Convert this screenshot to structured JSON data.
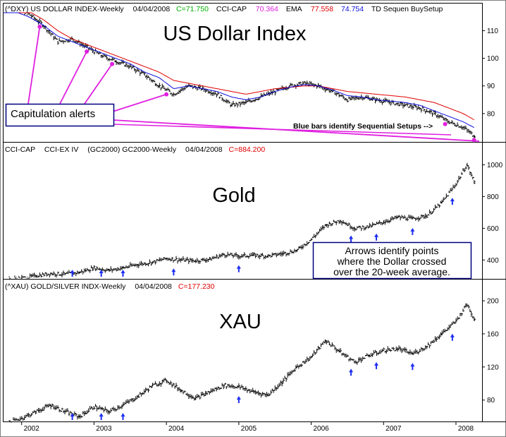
{
  "colors": {
    "price_bars": "#000000",
    "ema": "#e00000",
    "td_line": "#1010e0",
    "alerts": "#e020e0",
    "arrows": "#1e2ef0",
    "value_green": "#00b000",
    "value_magenta": "#e020e0",
    "value_red": "#e00000",
    "value_blue": "#1010e0"
  },
  "panels": {
    "dxy": {
      "header": {
        "symbol": "(^DXY) US DOLLAR INDEX-Weekly",
        "date": "04/04/2008",
        "close": "C=71.750",
        "cci_label": "CCI-CAP",
        "cci_value": "70.364",
        "ema_label": "EMA",
        "ema_value": "77.558",
        "td_value": "74.754",
        "td_label": "TD Sequen BuySetup"
      },
      "title": "US Dollar Index",
      "callout": "Capitulation alerts",
      "setup_note": "Blue bars identify Sequential Setups -->"
    },
    "gold": {
      "header": {
        "cci_label": "CCI-CAP",
        "ccix_label": "CCI-EX IV",
        "symbol": "(GC2000) GC2000-Weekly",
        "date": "04/04/2008",
        "close": "C=884.200"
      },
      "title": "Gold",
      "note_lines": [
        "Arrows identify points",
        "where the Dollar crossed",
        "over the 20-week average."
      ]
    },
    "xau": {
      "header": {
        "symbol": "(^XAU) GOLD/SILVER INDX-Weekly",
        "date": "04/04/2008",
        "close": "C=177.230"
      },
      "title": "XAU"
    }
  },
  "chart_data": [
    {
      "type": "bar",
      "subtype": "ohlc",
      "title": "US Dollar Index",
      "series_name": "(^DXY) US DOLLAR INDEX-Weekly",
      "x_labels": [
        "2002",
        "2003",
        "2004",
        "2005",
        "2006",
        "2007",
        "2008"
      ],
      "y_ticks": [
        80,
        90,
        100,
        110
      ],
      "ylim": [
        70,
        116
      ],
      "xlim": [
        2001.75,
        2008.36
      ],
      "grid": false,
      "x": [
        2001.9,
        2002.1,
        2002.3,
        2002.5,
        2002.7,
        2002.9,
        2003.1,
        2003.3,
        2003.5,
        2003.7,
        2003.9,
        2004.1,
        2004.3,
        2004.5,
        2004.7,
        2004.9,
        2005.1,
        2005.3,
        2005.5,
        2005.7,
        2005.9,
        2006.1,
        2006.3,
        2006.5,
        2006.7,
        2006.9,
        2007.1,
        2007.3,
        2007.5,
        2007.7,
        2007.9,
        2008.1,
        2008.26
      ],
      "values": [
        118,
        116,
        112,
        106,
        107,
        104,
        101,
        99,
        97,
        94,
        90,
        87,
        90,
        89,
        87,
        83,
        84,
        86,
        88,
        90,
        91,
        90,
        88,
        85,
        86,
        85,
        84,
        83,
        82,
        80,
        77,
        75,
        71.75
      ],
      "overlays": [
        {
          "name": "EMA",
          "color": "red",
          "values": [
            119,
            117,
            114,
            110,
            107,
            105,
            103,
            101,
            99,
            97,
            95,
            92,
            91,
            90,
            89,
            88,
            87,
            88,
            89,
            89.5,
            90,
            90,
            89,
            88,
            87.5,
            87,
            86.5,
            86,
            85,
            84,
            82,
            80,
            77.6
          ]
        },
        {
          "name": "TD Sequen BuySetup",
          "color": "blue",
          "values": [
            117,
            115,
            112,
            108,
            106,
            104,
            102,
            100,
            98,
            95,
            93,
            89,
            90,
            89,
            88,
            86,
            85,
            86,
            88,
            89.5,
            90.5,
            90,
            88.5,
            86.5,
            86,
            85,
            84.5,
            84,
            83,
            81,
            79,
            77,
            74.8
          ]
        }
      ],
      "annotations": [
        "Capitulation alerts",
        "Blue bars identify Sequential Setups -->"
      ],
      "alert_x": [
        2002.25,
        2002.9,
        2003.25,
        2004.0,
        2007.85,
        2008.25
      ]
    },
    {
      "type": "bar",
      "subtype": "ohlc",
      "title": "Gold",
      "series_name": "(GC2000) GC2000-Weekly",
      "x_labels": [
        "2002",
        "2003",
        "2004",
        "2005",
        "2006",
        "2007",
        "2008"
      ],
      "y_ticks": [
        400,
        600,
        800,
        1000
      ],
      "ylim": [
        290,
        1060
      ],
      "xlim": [
        2001.75,
        2008.36
      ],
      "grid": false,
      "x": [
        2001.8,
        2002.0,
        2002.2,
        2002.4,
        2002.6,
        2002.8,
        2003.0,
        2003.2,
        2003.4,
        2003.6,
        2003.8,
        2004.0,
        2004.2,
        2004.4,
        2004.6,
        2004.8,
        2005.0,
        2005.2,
        2005.4,
        2005.6,
        2005.8,
        2006.0,
        2006.2,
        2006.4,
        2006.6,
        2006.8,
        2007.0,
        2007.2,
        2007.4,
        2007.6,
        2007.8,
        2008.0,
        2008.15,
        2008.26
      ],
      "values": [
        275,
        285,
        300,
        315,
        310,
        322,
        350,
        335,
        350,
        372,
        385,
        410,
        400,
        395,
        405,
        435,
        425,
        430,
        425,
        440,
        460,
        530,
        620,
        650,
        600,
        610,
        640,
        670,
        660,
        680,
        760,
        880,
        1000,
        884
      ],
      "annotations": [
        "Arrows identify points",
        "where the Dollar crossed",
        "over the 20-week average."
      ],
      "arrow_x": [
        2002.7,
        2003.1,
        2003.4,
        2004.1,
        2005.0,
        2006.55,
        2006.9,
        2007.4,
        2007.95
      ]
    },
    {
      "type": "bar",
      "subtype": "ohlc",
      "title": "XAU",
      "series_name": "(^XAU) GOLD/SILVER INDX-Weekly",
      "x_labels": [
        "2002",
        "2003",
        "2004",
        "2005",
        "2006",
        "2007",
        "2008"
      ],
      "y_ticks": [
        80,
        120,
        160,
        200
      ],
      "ylim": [
        55,
        212
      ],
      "xlim": [
        2001.75,
        2008.36
      ],
      "grid": false,
      "x": [
        2001.8,
        2002.0,
        2002.2,
        2002.4,
        2002.6,
        2002.8,
        2003.0,
        2003.2,
        2003.4,
        2003.6,
        2003.8,
        2004.0,
        2004.2,
        2004.4,
        2004.6,
        2004.8,
        2005.0,
        2005.2,
        2005.4,
        2005.6,
        2005.8,
        2006.0,
        2006.2,
        2006.4,
        2006.6,
        2006.8,
        2007.0,
        2007.2,
        2007.4,
        2007.6,
        2007.8,
        2008.0,
        2008.15,
        2008.26
      ],
      "values": [
        52,
        58,
        66,
        74,
        66,
        60,
        72,
        66,
        74,
        84,
        97,
        104,
        92,
        82,
        90,
        98,
        96,
        90,
        86,
        102,
        120,
        132,
        152,
        138,
        126,
        134,
        140,
        142,
        136,
        145,
        160,
        175,
        196,
        177
      ],
      "arrow_x": [
        2002.7,
        2003.1,
        2003.4,
        2005.0,
        2006.55,
        2006.9,
        2007.4,
        2007.95
      ]
    }
  ]
}
